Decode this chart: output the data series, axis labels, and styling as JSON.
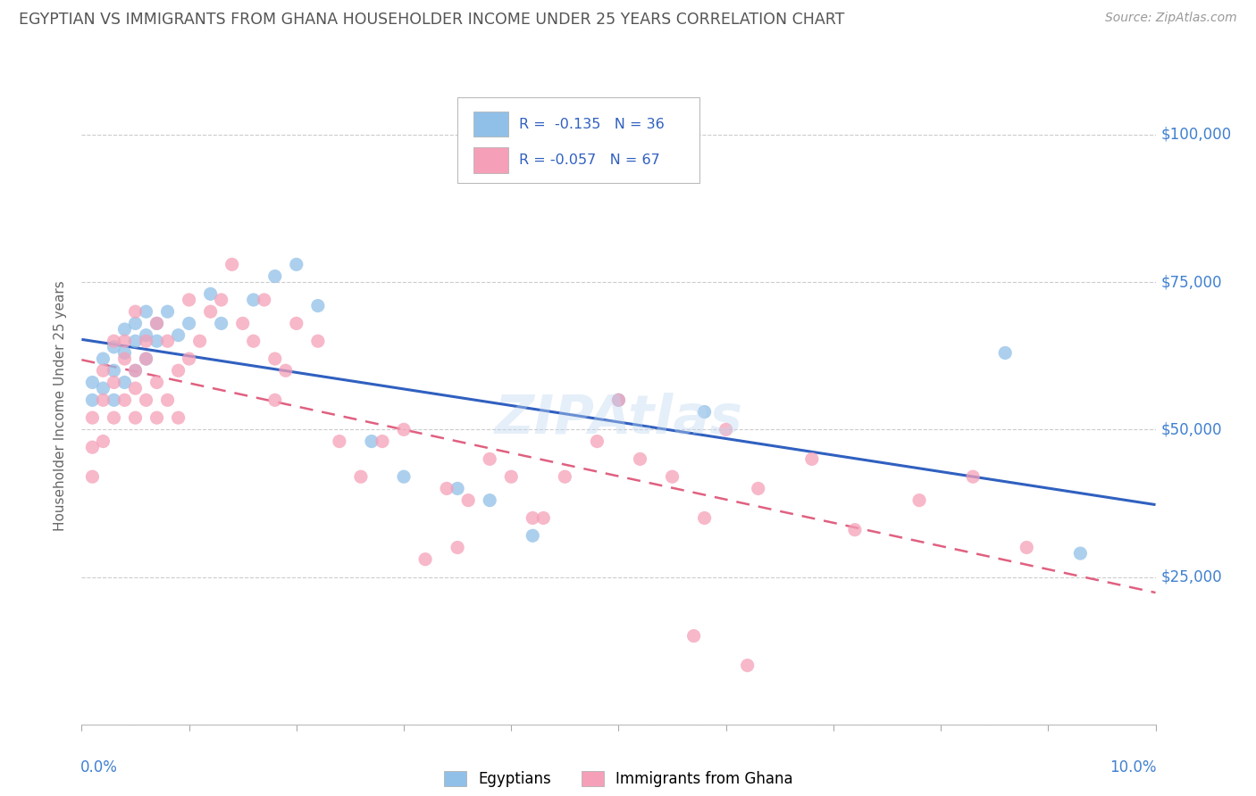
{
  "title": "EGYPTIAN VS IMMIGRANTS FROM GHANA HOUSEHOLDER INCOME UNDER 25 YEARS CORRELATION CHART",
  "source": "Source: ZipAtlas.com",
  "ylabel": "Householder Income Under 25 years",
  "xlim": [
    0.0,
    0.1
  ],
  "ylim": [
    0,
    108000
  ],
  "egyptians_R": -0.135,
  "egyptians_N": 36,
  "ghana_R": -0.057,
  "ghana_N": 67,
  "egyptians_color": "#90C0E8",
  "ghana_color": "#F5A0B8",
  "egyptians_line_color": "#3060C0",
  "ghana_line_color": "#E06080",
  "background_color": "#FFFFFF",
  "grid_color": "#CCCCCC",
  "title_color": "#555555",
  "label_color": "#4080D0",
  "right_yticks": [
    25000,
    50000,
    75000,
    100000
  ],
  "right_yticklabels": [
    "$25,000",
    "$50,000",
    "$75,000",
    "$100,000"
  ],
  "egyptians_x": [
    0.001,
    0.001,
    0.002,
    0.002,
    0.003,
    0.003,
    0.003,
    0.004,
    0.004,
    0.004,
    0.005,
    0.005,
    0.005,
    0.006,
    0.006,
    0.006,
    0.007,
    0.007,
    0.008,
    0.009,
    0.01,
    0.012,
    0.013,
    0.016,
    0.018,
    0.02,
    0.022,
    0.027,
    0.03,
    0.035,
    0.038,
    0.042,
    0.05,
    0.058,
    0.086,
    0.093
  ],
  "egyptians_y": [
    58000,
    55000,
    62000,
    57000,
    60000,
    64000,
    55000,
    63000,
    58000,
    67000,
    65000,
    60000,
    68000,
    62000,
    66000,
    70000,
    65000,
    68000,
    70000,
    66000,
    68000,
    73000,
    68000,
    72000,
    76000,
    78000,
    71000,
    48000,
    42000,
    40000,
    38000,
    32000,
    55000,
    53000,
    63000,
    29000
  ],
  "ghana_x": [
    0.001,
    0.001,
    0.001,
    0.002,
    0.002,
    0.002,
    0.003,
    0.003,
    0.003,
    0.004,
    0.004,
    0.004,
    0.005,
    0.005,
    0.005,
    0.005,
    0.006,
    0.006,
    0.006,
    0.007,
    0.007,
    0.007,
    0.008,
    0.008,
    0.009,
    0.009,
    0.01,
    0.01,
    0.011,
    0.012,
    0.013,
    0.014,
    0.015,
    0.016,
    0.017,
    0.018,
    0.018,
    0.019,
    0.02,
    0.022,
    0.024,
    0.026,
    0.028,
    0.03,
    0.032,
    0.034,
    0.036,
    0.038,
    0.04,
    0.042,
    0.045,
    0.048,
    0.05,
    0.052,
    0.055,
    0.058,
    0.06,
    0.063,
    0.068,
    0.072,
    0.078,
    0.083,
    0.088,
    0.035,
    0.043,
    0.057,
    0.062
  ],
  "ghana_y": [
    52000,
    47000,
    42000,
    55000,
    60000,
    48000,
    58000,
    52000,
    65000,
    62000,
    55000,
    65000,
    52000,
    60000,
    57000,
    70000,
    65000,
    62000,
    55000,
    58000,
    68000,
    52000,
    55000,
    65000,
    60000,
    52000,
    62000,
    72000,
    65000,
    70000,
    72000,
    78000,
    68000,
    65000,
    72000,
    55000,
    62000,
    60000,
    68000,
    65000,
    48000,
    42000,
    48000,
    50000,
    28000,
    40000,
    38000,
    45000,
    42000,
    35000,
    42000,
    48000,
    55000,
    45000,
    42000,
    35000,
    50000,
    40000,
    45000,
    33000,
    38000,
    42000,
    30000,
    30000,
    35000,
    15000,
    10000
  ]
}
